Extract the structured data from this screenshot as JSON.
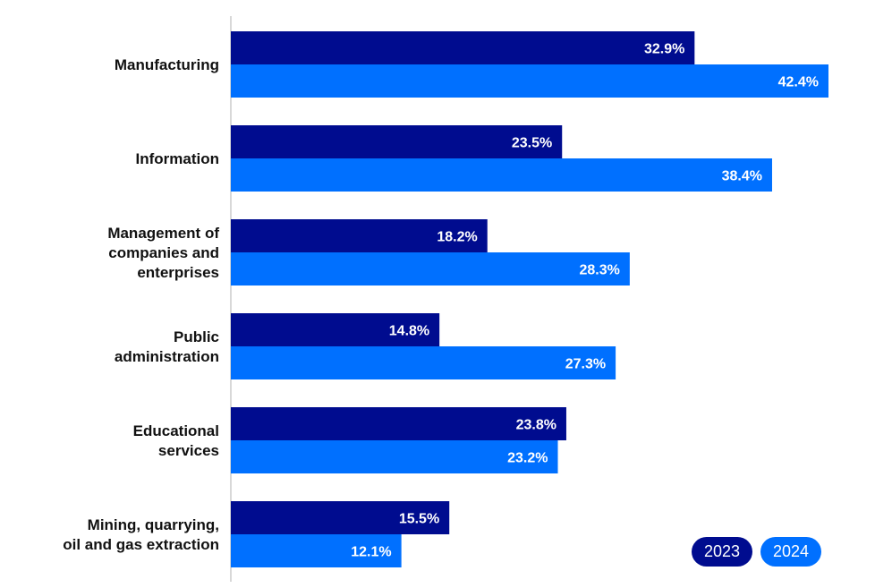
{
  "chart_data": {
    "type": "bar",
    "orientation": "horizontal",
    "title": "",
    "xlabel": "",
    "ylabel": "",
    "categories": [
      [
        "Manufacturing"
      ],
      [
        "Information"
      ],
      [
        "Management of",
        "companies and",
        "enterprises"
      ],
      [
        "Public",
        "administration"
      ],
      [
        "Educational",
        "services"
      ],
      [
        "Mining, quarrying,",
        "oil and gas extraction"
      ]
    ],
    "series": [
      {
        "name": "2023",
        "color": "#000c8f",
        "values": [
          32.9,
          23.5,
          18.2,
          14.8,
          23.8,
          15.5
        ]
      },
      {
        "name": "2024",
        "color": "#0070ff",
        "values": [
          42.4,
          38.4,
          28.3,
          27.3,
          23.2,
          12.1
        ]
      }
    ],
    "value_suffix": "%",
    "xlim": [
      0,
      42.4
    ],
    "grid": false,
    "legend_position": "bottom-right",
    "axis_color": "#cccccc"
  }
}
